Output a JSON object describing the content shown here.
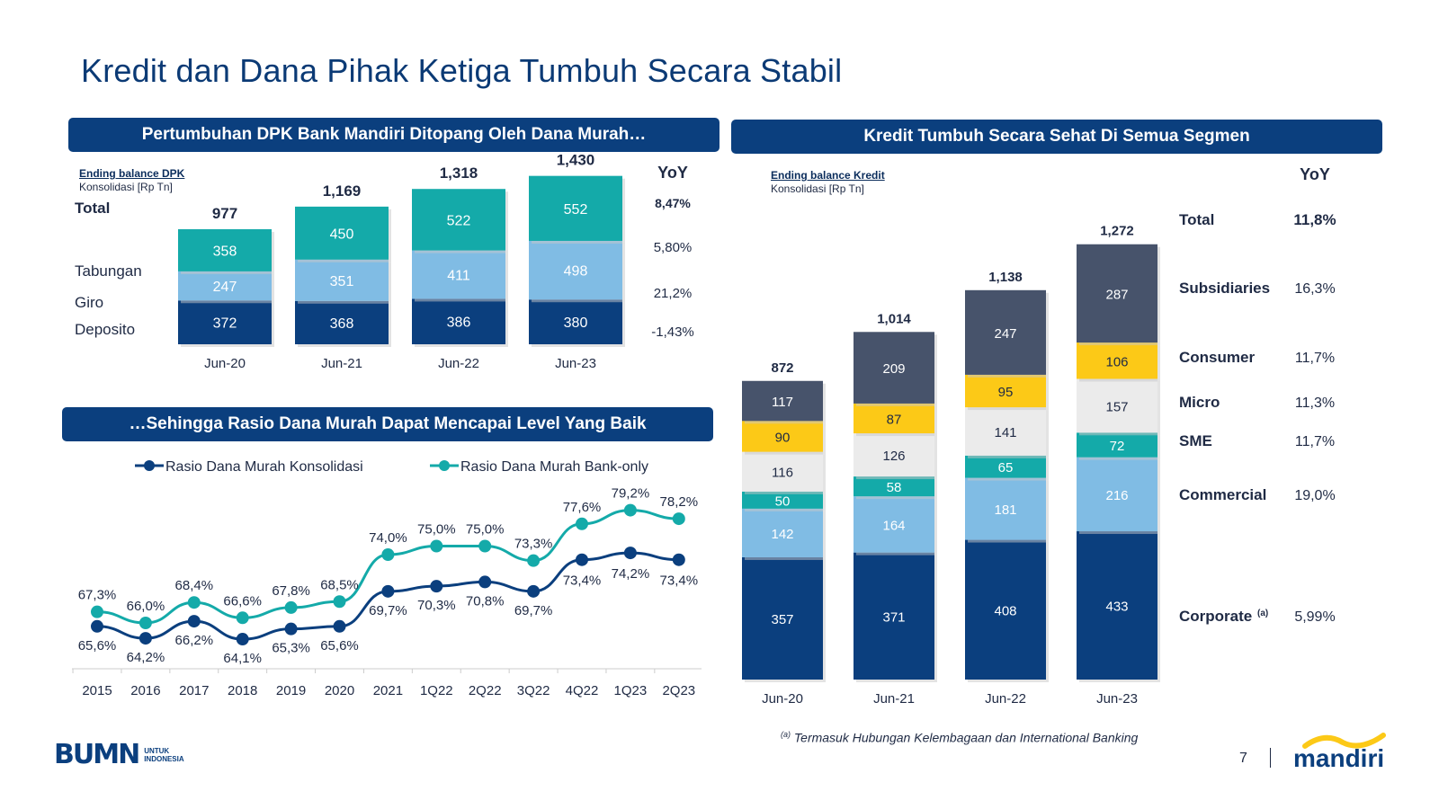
{
  "title": "Kredit dan Dana Pihak Ketiga Tumbuh Secara Stabil",
  "dpk_panel": {
    "header": "Pertumbuhan DPK Bank Mandiri Ditopang Oleh Dana Murah…",
    "note_title": "Ending balance DPK",
    "note_sub": "Konsolidasi [Rp Tn]",
    "yoy_label": "YoY",
    "total_label": "Total"
  },
  "ratio_panel": {
    "header": "…Sehingga Rasio Dana Murah Dapat Mencapai Level Yang Baik"
  },
  "kredit_panel": {
    "header": "Kredit Tumbuh Secara Sehat Di Semua Segmen",
    "note_title": "Ending balance Kredit",
    "note_sub": "Konsolidasi [Rp Tn]",
    "yoy_label": "YoY",
    "footnote_mark": "(a)",
    "footnote": "Termasuk Hubungan Kelembagaan dan International Banking"
  },
  "footer": {
    "bumn": "BUMN",
    "bumn_sub1": "UNTUK",
    "bumn_sub2": "INDONESIA",
    "page_number": "7",
    "brand": "mandiri"
  },
  "colors": {
    "navy": "#0b3f7e",
    "teal": "#14aaa9",
    "lightblue": "#80bce4",
    "slate": "#47536b",
    "yellow": "#fcc917",
    "lightgray": "#ebebeb"
  },
  "chart_data": [
    {
      "type": "bar",
      "stacked": true,
      "categories": [
        "Jun-20",
        "Jun-21",
        "Jun-22",
        "Jun-23"
      ],
      "series": [
        {
          "name": "Deposito",
          "values": [
            372,
            368,
            386,
            380
          ],
          "yoy": "-1,43%",
          "color": "#0b3f7e"
        },
        {
          "name": "Giro",
          "values": [
            247,
            351,
            411,
            498
          ],
          "yoy": "21,2%",
          "color": "#80bce4"
        },
        {
          "name": "Tabungan",
          "values": [
            358,
            450,
            522,
            552
          ],
          "yoy": "5,80%",
          "color": "#14aaa9"
        }
      ],
      "totals": [
        "977",
        "1,169",
        "1,318",
        "1,430"
      ],
      "total_yoy": "8,47%"
    },
    {
      "type": "line",
      "x": [
        "2015",
        "2016",
        "2017",
        "2018",
        "2019",
        "2020",
        "2021",
        "1Q22",
        "2Q22",
        "3Q22",
        "4Q22",
        "1Q23",
        "2Q23"
      ],
      "series": [
        {
          "name": "Rasio Dana Murah Konsolidasi",
          "values": [
            65.6,
            64.2,
            66.2,
            64.1,
            65.3,
            65.6,
            69.7,
            70.3,
            70.8,
            69.7,
            73.4,
            74.2,
            73.4
          ],
          "labels": [
            "65,6%",
            "64,2%",
            "66,2%",
            "64,1%",
            "65,3%",
            "65,6%",
            "69,7%",
            "70,3%",
            "70,8%",
            "69,7%",
            "73,4%",
            "74,2%",
            "73,4%"
          ],
          "color": "#0b3f7e"
        },
        {
          "name": "Rasio Dana Murah Bank-only",
          "values": [
            67.3,
            66.0,
            68.4,
            66.6,
            67.8,
            68.5,
            74.0,
            75.0,
            75.0,
            73.3,
            77.6,
            79.2,
            78.2
          ],
          "labels": [
            "67,3%",
            "66,0%",
            "68,4%",
            "66,6%",
            "67,8%",
            "68,5%",
            "74,0%",
            "75,0%",
            "75,0%",
            "73,3%",
            "77,6%",
            "79,2%",
            "78,2%"
          ],
          "color": "#14aaa9"
        }
      ]
    },
    {
      "type": "bar",
      "stacked": true,
      "categories": [
        "Jun-20",
        "Jun-21",
        "Jun-22",
        "Jun-23"
      ],
      "series": [
        {
          "name": "Corporate",
          "name_mark": "(a)",
          "values": [
            357,
            371,
            408,
            433
          ],
          "yoy": "5,99%",
          "color": "#0b3f7e"
        },
        {
          "name": "Commercial",
          "values": [
            142,
            164,
            181,
            216
          ],
          "yoy": "19,0%",
          "color": "#80bce4"
        },
        {
          "name": "SME",
          "values": [
            50,
            58,
            65,
            72
          ],
          "yoy": "11,7%",
          "color": "#14aaa9"
        },
        {
          "name": "Micro",
          "values": [
            116,
            126,
            141,
            157
          ],
          "yoy": "11,3%",
          "color": "#ebebeb"
        },
        {
          "name": "Consumer",
          "values": [
            90,
            87,
            95,
            106
          ],
          "yoy": "11,7%",
          "color": "#fcc917"
        },
        {
          "name": "Subsidiaries",
          "values": [
            117,
            209,
            247,
            287
          ],
          "yoy": "16,3%",
          "color": "#47536b"
        }
      ],
      "totals": [
        "872",
        "1,014",
        "1,138",
        "1,272"
      ],
      "total_label": "Total",
      "total_yoy": "11,8%"
    }
  ]
}
